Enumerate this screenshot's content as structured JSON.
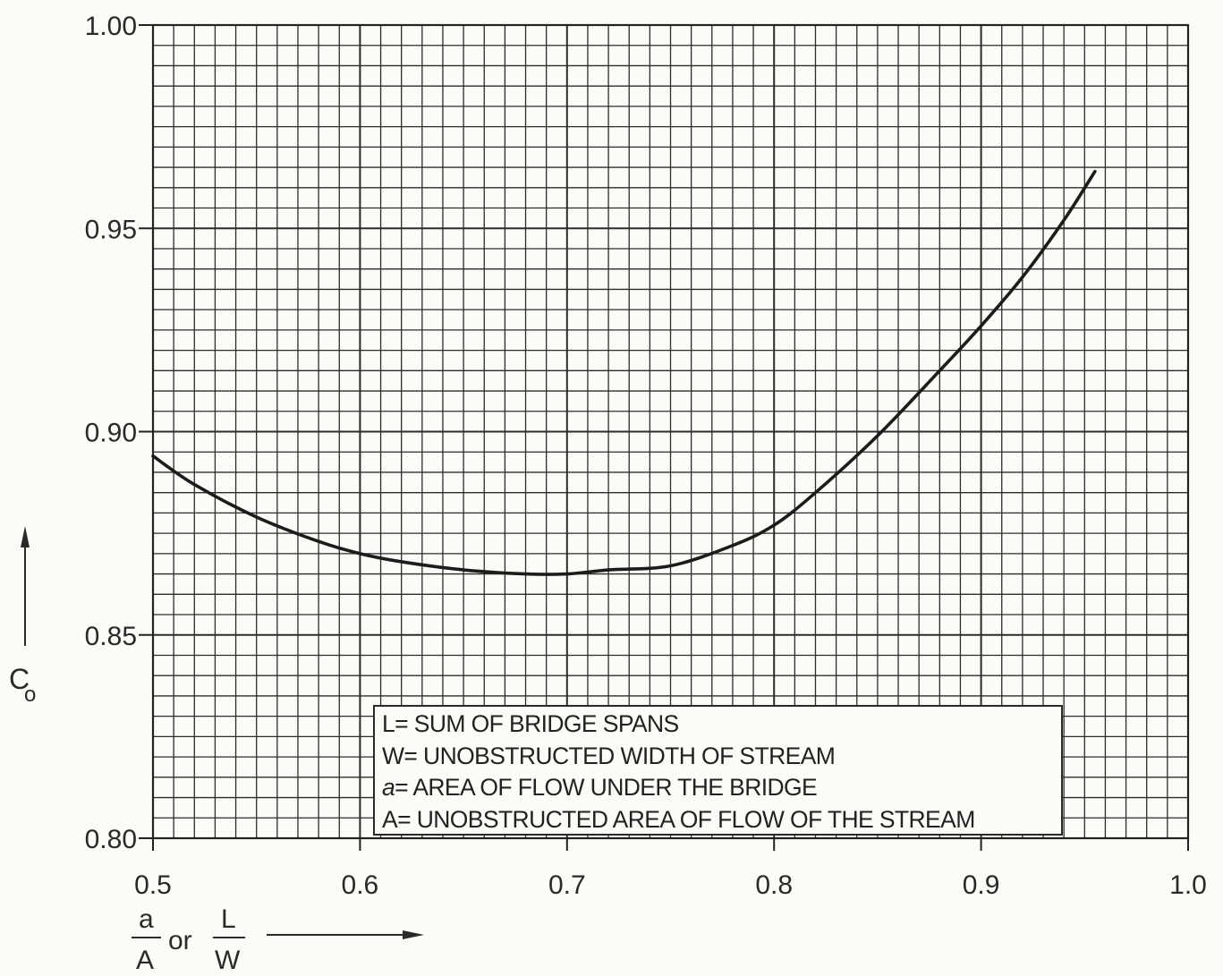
{
  "chart_data": {
    "type": "line",
    "title": "",
    "xlabel": {
      "numerator_1": "a",
      "denominator_1": "A",
      "connector": "or",
      "numerator_2": "L",
      "denominator_2": "W"
    },
    "ylabel": {
      "main": "C",
      "subscript": "o"
    },
    "xlim": [
      0.5,
      1.0
    ],
    "ylim": [
      0.8,
      1.0
    ],
    "x_ticks": [
      "0.5",
      "0.6",
      "0.7",
      "0.8",
      "0.9",
      "1.0"
    ],
    "y_ticks": [
      "0.80",
      "0.85",
      "0.90",
      "0.95",
      "1.00"
    ],
    "grid": true,
    "series": [
      {
        "x": [
          0.5,
          0.52,
          0.55,
          0.58,
          0.6,
          0.62,
          0.65,
          0.68,
          0.7,
          0.72,
          0.75,
          0.78,
          0.8,
          0.82,
          0.85,
          0.88,
          0.9,
          0.92,
          0.94,
          0.955
        ],
        "y": [
          0.894,
          0.887,
          0.879,
          0.873,
          0.87,
          0.868,
          0.866,
          0.865,
          0.865,
          0.866,
          0.867,
          0.872,
          0.877,
          0.885,
          0.899,
          0.915,
          0.926,
          0.938,
          0.952,
          0.964
        ]
      }
    ],
    "legend_box": {
      "position": "bottom-center",
      "lines": [
        {
          "symbol": "L",
          "italic": false,
          "text": "= SUM OF BRIDGE SPANS"
        },
        {
          "symbol": "W",
          "italic": false,
          "text": "= UNOBSTRUCTED WIDTH OF STREAM"
        },
        {
          "symbol": "a",
          "italic": true,
          "text": "= AREA OF FLOW UNDER THE BRIDGE"
        },
        {
          "symbol": "A",
          "italic": false,
          "text": "= UNOBSTRUCTED AREA OF FLOW OF THE STREAM"
        }
      ]
    }
  }
}
